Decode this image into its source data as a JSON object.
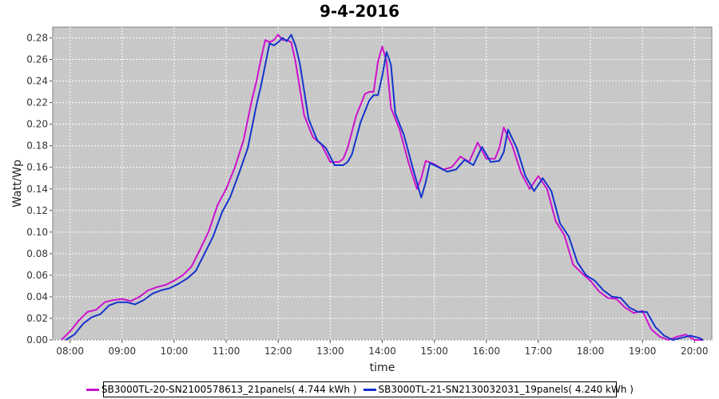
{
  "chart_data": {
    "type": "line",
    "title": "9-4-2016",
    "xlabel": "time",
    "ylabel": "Watt/Wp",
    "xlim": [
      "07:40",
      "20:20"
    ],
    "ylim": [
      0,
      0.29
    ],
    "x_ticks": [
      "08:00",
      "09:00",
      "10:00",
      "11:00",
      "12:00",
      "13:00",
      "14:00",
      "15:00",
      "16:00",
      "17:00",
      "18:00",
      "19:00",
      "20:00"
    ],
    "y_ticks": [
      "0.00",
      "0.02",
      "0.04",
      "0.06",
      "0.08",
      "0.10",
      "0.12",
      "0.14",
      "0.16",
      "0.18",
      "0.20",
      "0.22",
      "0.24",
      "0.26",
      "0.28"
    ],
    "grid": true,
    "legend_position": "bottom",
    "plot_background": "#c8c8c8",
    "series": [
      {
        "name": "SB3000TL-20-SN2100578613_21panels( 4.744 kWh )",
        "color": "#cc11cc",
        "x": [
          "07:50",
          "08:00",
          "08:10",
          "08:20",
          "08:30",
          "08:40",
          "08:50",
          "09:00",
          "09:10",
          "09:20",
          "09:30",
          "09:40",
          "09:50",
          "10:00",
          "10:10",
          "10:20",
          "10:30",
          "10:40",
          "10:50",
          "11:00",
          "11:10",
          "11:20",
          "11:30",
          "11:35",
          "11:40",
          "11:45",
          "11:50",
          "11:55",
          "12:00",
          "12:05",
          "12:10",
          "12:15",
          "12:20",
          "12:30",
          "12:40",
          "12:50",
          "13:00",
          "13:10",
          "13:15",
          "13:20",
          "13:30",
          "13:40",
          "13:45",
          "13:50",
          "13:55",
          "14:00",
          "14:05",
          "14:10",
          "14:20",
          "14:30",
          "14:40",
          "14:45",
          "14:50",
          "15:00",
          "15:10",
          "15:20",
          "15:30",
          "15:40",
          "15:50",
          "16:00",
          "16:10",
          "16:15",
          "16:20",
          "16:30",
          "16:40",
          "16:50",
          "17:00",
          "17:10",
          "17:20",
          "17:30",
          "17:40",
          "17:50",
          "18:00",
          "18:10",
          "18:20",
          "18:30",
          "18:40",
          "18:50",
          "19:00",
          "19:10",
          "19:20",
          "19:30",
          "19:40",
          "19:50",
          "20:00",
          "20:10"
        ],
        "y": [
          0.0,
          0.008,
          0.018,
          0.026,
          0.028,
          0.035,
          0.037,
          0.038,
          0.036,
          0.04,
          0.046,
          0.049,
          0.051,
          0.055,
          0.06,
          0.068,
          0.084,
          0.101,
          0.125,
          0.14,
          0.16,
          0.185,
          0.224,
          0.24,
          0.26,
          0.278,
          0.276,
          0.278,
          0.283,
          0.278,
          0.278,
          0.276,
          0.258,
          0.208,
          0.188,
          0.181,
          0.165,
          0.165,
          0.168,
          0.178,
          0.208,
          0.228,
          0.23,
          0.23,
          0.258,
          0.272,
          0.258,
          0.215,
          0.195,
          0.165,
          0.14,
          0.15,
          0.166,
          0.163,
          0.158,
          0.16,
          0.17,
          0.165,
          0.183,
          0.168,
          0.168,
          0.178,
          0.197,
          0.18,
          0.155,
          0.14,
          0.152,
          0.14,
          0.11,
          0.097,
          0.07,
          0.062,
          0.055,
          0.045,
          0.039,
          0.038,
          0.03,
          0.025,
          0.027,
          0.01,
          0.003,
          0.0,
          0.003,
          0.005,
          0.0,
          0.0
        ]
      },
      {
        "name": "SB3000TL-21-SN2130032031_19panels( 4.240 kWh )",
        "color": "#1433cc",
        "x": [
          "07:55",
          "08:05",
          "08:15",
          "08:25",
          "08:35",
          "08:45",
          "08:55",
          "09:05",
          "09:15",
          "09:25",
          "09:35",
          "09:45",
          "09:55",
          "10:05",
          "10:15",
          "10:25",
          "10:35",
          "10:45",
          "10:55",
          "11:05",
          "11:15",
          "11:25",
          "11:35",
          "11:40",
          "11:45",
          "11:50",
          "11:55",
          "12:00",
          "12:05",
          "12:10",
          "12:15",
          "12:20",
          "12:25",
          "12:35",
          "12:45",
          "12:55",
          "13:05",
          "13:15",
          "13:20",
          "13:25",
          "13:35",
          "13:45",
          "13:50",
          "13:55",
          "14:00",
          "14:05",
          "14:10",
          "14:15",
          "14:25",
          "14:35",
          "14:45",
          "14:50",
          "14:55",
          "15:05",
          "15:15",
          "15:25",
          "15:35",
          "15:45",
          "15:55",
          "16:05",
          "16:15",
          "16:20",
          "16:25",
          "16:35",
          "16:45",
          "16:55",
          "17:05",
          "17:15",
          "17:25",
          "17:35",
          "17:45",
          "17:55",
          "18:05",
          "18:15",
          "18:25",
          "18:35",
          "18:45",
          "18:55",
          "19:05",
          "19:15",
          "19:25",
          "19:35",
          "19:45",
          "19:55",
          "20:05",
          "20:10"
        ],
        "y": [
          0.0,
          0.005,
          0.015,
          0.021,
          0.024,
          0.032,
          0.035,
          0.035,
          0.033,
          0.037,
          0.043,
          0.046,
          0.048,
          0.052,
          0.057,
          0.064,
          0.08,
          0.096,
          0.118,
          0.133,
          0.155,
          0.178,
          0.218,
          0.235,
          0.255,
          0.275,
          0.273,
          0.276,
          0.28,
          0.277,
          0.283,
          0.273,
          0.256,
          0.205,
          0.185,
          0.178,
          0.162,
          0.162,
          0.165,
          0.172,
          0.202,
          0.222,
          0.227,
          0.227,
          0.245,
          0.267,
          0.255,
          0.21,
          0.19,
          0.16,
          0.132,
          0.146,
          0.164,
          0.16,
          0.156,
          0.158,
          0.167,
          0.162,
          0.179,
          0.165,
          0.166,
          0.174,
          0.195,
          0.178,
          0.152,
          0.138,
          0.15,
          0.138,
          0.108,
          0.096,
          0.072,
          0.06,
          0.055,
          0.046,
          0.04,
          0.039,
          0.03,
          0.026,
          0.026,
          0.012,
          0.004,
          0.0,
          0.002,
          0.004,
          0.002,
          0.0
        ]
      }
    ]
  }
}
